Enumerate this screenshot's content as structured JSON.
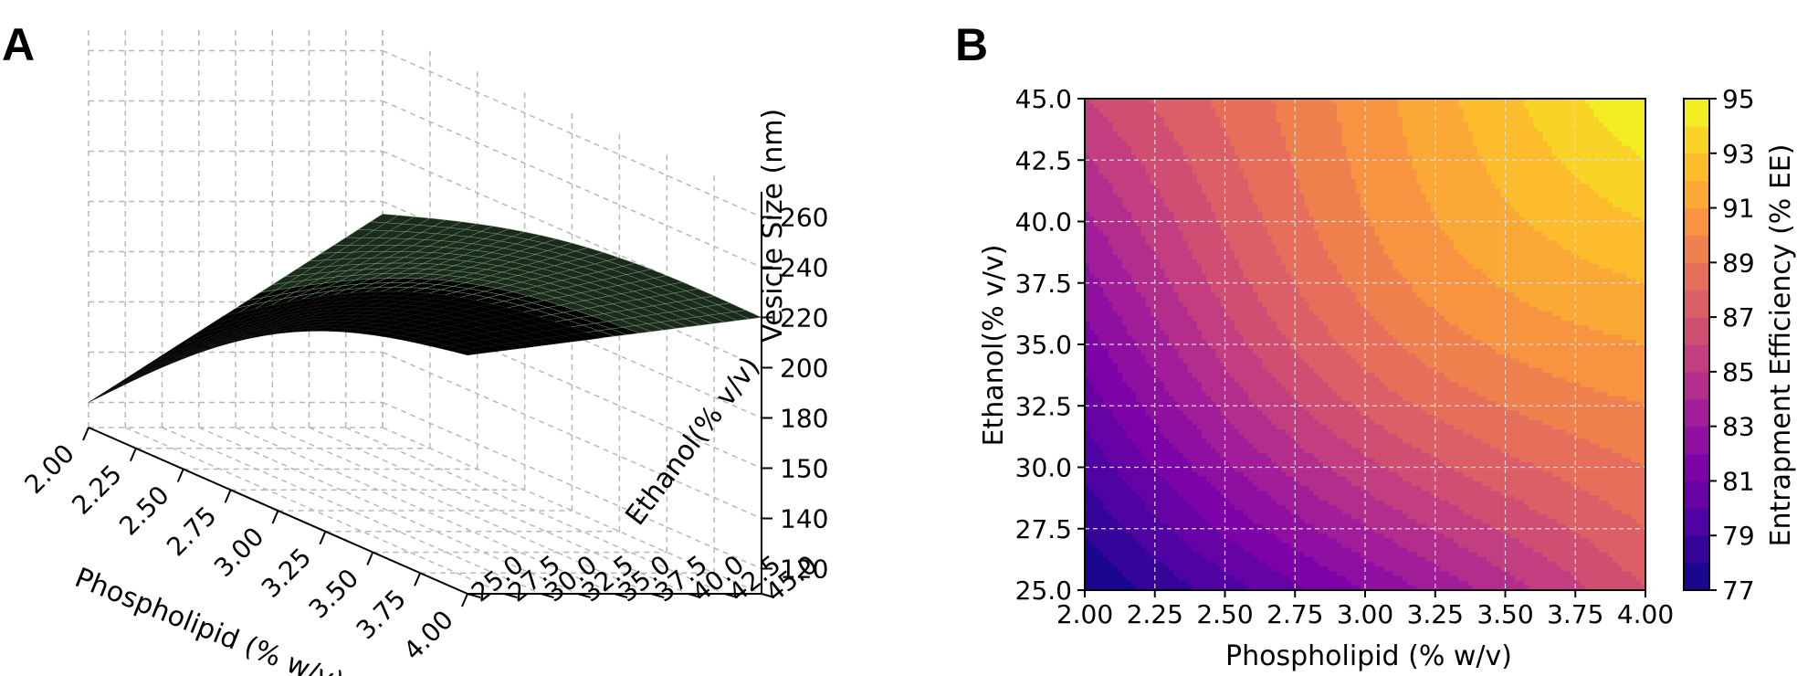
{
  "panelA": {
    "letter": "A",
    "chart_data": {
      "type": "surface3d",
      "title": "",
      "xlabel": "Phospholipid (% w/v)",
      "ylabel": "Ethanol(% v/v)",
      "zlabel": "Vesicle Size (nm)",
      "x_ticks": [
        "2.00",
        "2.25",
        "2.50",
        "2.75",
        "3.00",
        "3.25",
        "3.50",
        "3.75",
        "4.00"
      ],
      "y_ticks": [
        "25.0",
        "27.5",
        "30.0",
        "32.5",
        "35.0",
        "37.5",
        "40.0",
        "42.5",
        "45.0"
      ],
      "z_ticks": [
        "120",
        "140",
        "150",
        "180",
        "200",
        "220",
        "240",
        "260"
      ],
      "xlim": [
        2.0,
        4.0
      ],
      "ylim": [
        25.0,
        45.0
      ],
      "zlim": [
        110,
        270
      ],
      "surface_corners": [
        {
          "x": 2.0,
          "y": 25.0,
          "z": 120
        },
        {
          "x": 4.0,
          "y": 25.0,
          "z": 205
        },
        {
          "x": 2.0,
          "y": 45.0,
          "z": 195
        },
        {
          "x": 4.0,
          "y": 45.0,
          "z": 220
        }
      ]
    }
  },
  "panelB": {
    "letter": "B",
    "chart_data": {
      "type": "contour",
      "title": "",
      "xlabel": "Phospholipid (% w/v)",
      "ylabel": "Ethanol(% v/v)",
      "colorbar_label": "Entrapment Efficiency (% EE)",
      "x_ticks": [
        "2.00",
        "2.25",
        "2.50",
        "2.75",
        "3.00",
        "3.25",
        "3.50",
        "3.75",
        "4.00"
      ],
      "y_ticks": [
        "25.0",
        "27.5",
        "30.0",
        "32.5",
        "35.0",
        "37.5",
        "40.0",
        "42.5",
        "45.0"
      ],
      "colorbar_ticks": [
        "77",
        "79",
        "81",
        "83",
        "85",
        "87",
        "89",
        "91",
        "93",
        "95"
      ],
      "xlim": [
        2.0,
        4.0
      ],
      "ylim": [
        25.0,
        45.0
      ],
      "zlim": [
        77,
        95
      ],
      "colormap": "plasma",
      "corner_values": [
        {
          "x": 2.0,
          "y": 25.0,
          "ee": 77
        },
        {
          "x": 4.0,
          "y": 25.0,
          "ee": 87
        },
        {
          "x": 2.0,
          "y": 45.0,
          "ee": 86
        },
        {
          "x": 4.0,
          "y": 45.0,
          "ee": 95
        }
      ]
    }
  }
}
